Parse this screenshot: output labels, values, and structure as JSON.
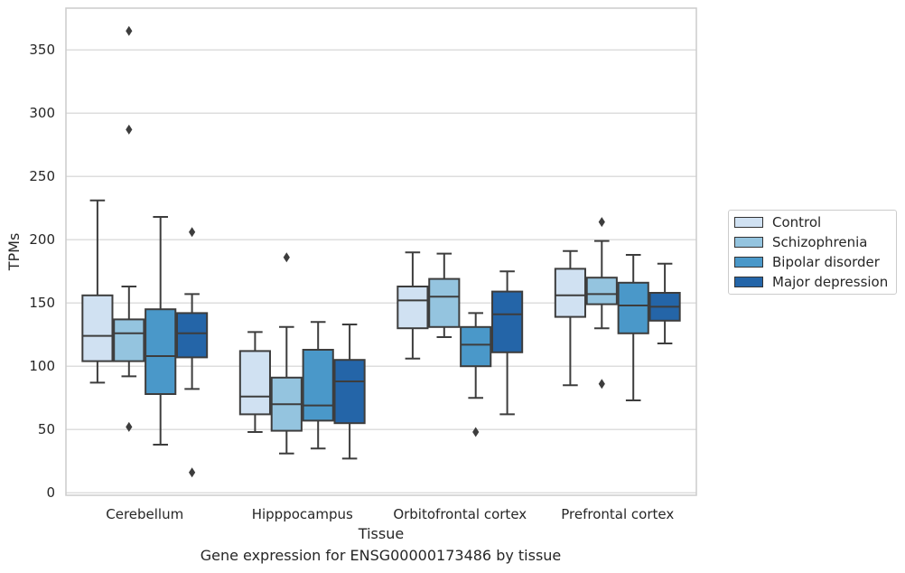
{
  "caption": "Gene expression for ENSG00000173486 by tissue",
  "chart_data": {
    "type": "box",
    "xlabel": "Tissue",
    "ylabel": "TPMs",
    "ylim": [
      -2,
      383
    ],
    "yticks": [
      0,
      50,
      100,
      150,
      200,
      250,
      300,
      350
    ],
    "grid": true,
    "legend_position": "right",
    "categories": [
      "Cerebellum",
      "Hipppocampus",
      "Orbitofrontal cortex",
      "Prefrontal cortex"
    ],
    "series": [
      {
        "name": "Control",
        "color": "#d0e1f2",
        "boxes": [
          {
            "whislo": 87,
            "q1": 104,
            "med": 124,
            "q3": 156,
            "whishi": 231,
            "fliers": []
          },
          {
            "whislo": 48,
            "q1": 62,
            "med": 76,
            "q3": 112,
            "whishi": 127,
            "fliers": []
          },
          {
            "whislo": 106,
            "q1": 130,
            "med": 152,
            "q3": 163,
            "whishi": 190,
            "fliers": []
          },
          {
            "whislo": 85,
            "q1": 139,
            "med": 156,
            "q3": 177,
            "whishi": 191,
            "fliers": []
          }
        ]
      },
      {
        "name": "Schizophrenia",
        "color": "#94c4df",
        "boxes": [
          {
            "whislo": 92,
            "q1": 104,
            "med": 126,
            "q3": 137,
            "whishi": 163,
            "fliers": [
              365,
              287,
              52
            ]
          },
          {
            "whislo": 31,
            "q1": 49,
            "med": 70,
            "q3": 91,
            "whishi": 131,
            "fliers": [
              186
            ]
          },
          {
            "whislo": 123,
            "q1": 131,
            "med": 155,
            "q3": 169,
            "whishi": 189,
            "fliers": []
          },
          {
            "whislo": 130,
            "q1": 149,
            "med": 157,
            "q3": 170,
            "whishi": 199,
            "fliers": [
              214,
              86
            ]
          }
        ]
      },
      {
        "name": "Bipolar disorder",
        "color": "#4a98c9",
        "boxes": [
          {
            "whislo": 38,
            "q1": 78,
            "med": 108,
            "q3": 145,
            "whishi": 218,
            "fliers": []
          },
          {
            "whislo": 35,
            "q1": 57,
            "med": 69,
            "q3": 113,
            "whishi": 135,
            "fliers": []
          },
          {
            "whislo": 75,
            "q1": 100,
            "med": 117,
            "q3": 131,
            "whishi": 142,
            "fliers": [
              48
            ]
          },
          {
            "whislo": 73,
            "q1": 126,
            "med": 148,
            "q3": 166,
            "whishi": 188,
            "fliers": []
          }
        ]
      },
      {
        "name": "Major depression",
        "color": "#2465a8",
        "boxes": [
          {
            "whislo": 82,
            "q1": 107,
            "med": 126,
            "q3": 142,
            "whishi": 157,
            "fliers": [
              206,
              16
            ]
          },
          {
            "whislo": 27,
            "q1": 55,
            "med": 88,
            "q3": 105,
            "whishi": 133,
            "fliers": []
          },
          {
            "whislo": 62,
            "q1": 111,
            "med": 141,
            "q3": 159,
            "whishi": 175,
            "fliers": []
          },
          {
            "whislo": 118,
            "q1": 136,
            "med": 147,
            "q3": 158,
            "whishi": 181,
            "fliers": []
          }
        ]
      }
    ]
  }
}
